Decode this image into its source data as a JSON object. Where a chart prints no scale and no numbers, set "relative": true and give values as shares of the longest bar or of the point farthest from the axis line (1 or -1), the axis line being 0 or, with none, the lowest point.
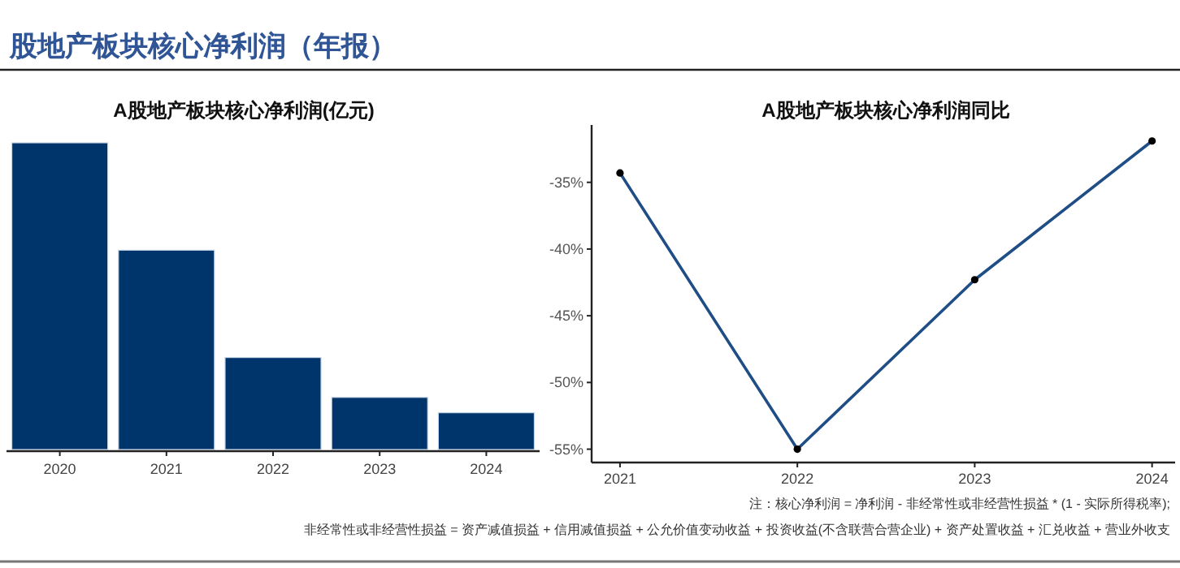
{
  "chart_data": [
    {
      "type": "other",
      "title": "股地产板块核心净利润（年报）",
      "annotations": [
        "注：核心净利润 = 净利润 - 非经常性或非经营性损益 * (1 - 实际所得税率);",
        "非经常性或非经营性损益 = 资产减值损益 + 信用减值损益 + 公允价值变动收益 + 投资收益(不含联营合营企业) + 资产处置收益 + 汇兑收益 + 营业外收支"
      ]
    },
    {
      "type": "bar",
      "title": "A股地产板块核心净利润(亿元)",
      "categories": [
        "2020",
        "2021",
        "2022",
        "2023",
        "2024"
      ],
      "values": [
        1,
        0.65,
        0.3,
        0.17,
        0.12
      ],
      "color": "#00356b",
      "relative": true
    },
    {
      "type": "line",
      "title": "A股地产板块核心净利润同比",
      "x": [
        2021,
        2022,
        2023,
        2024
      ],
      "values": [
        -34.3,
        -55,
        -42.3,
        -31.9
      ],
      "color": "#1f4e86",
      "marker": "circle",
      "xlim": [
        2020.84,
        2024.13
      ],
      "ylim": [
        -56,
        -30.7
      ],
      "xticks": [
        2021,
        2022,
        2023,
        2024
      ],
      "yticks": [
        {
          "value": -35,
          "label": "-35%"
        },
        {
          "value": -40,
          "label": "-40%"
        },
        {
          "value": -45,
          "label": "-45%"
        },
        {
          "value": -50,
          "label": "-50%"
        },
        {
          "value": -55,
          "label": "-55%"
        }
      ]
    }
  ]
}
